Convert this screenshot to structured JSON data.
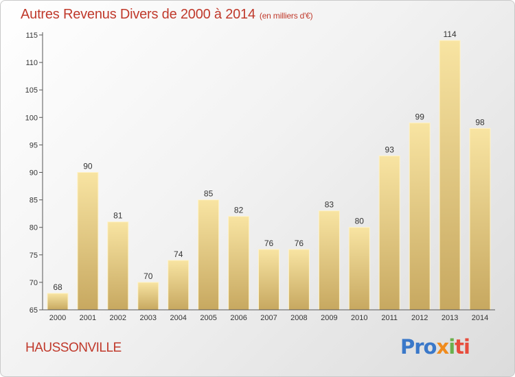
{
  "header": {
    "title": "Autres Revenus Divers de 2000 à 2014",
    "unit": "(en milliers d'€)"
  },
  "footer": {
    "town": "HAUSSONVILLE",
    "logo_parts": [
      "Pro",
      "x",
      "i",
      "ti"
    ]
  },
  "colors": {
    "title": "#c0392b",
    "bar_light": "#f7e2a0",
    "bar_dark": "#c9aa62"
  },
  "chart_data": {
    "type": "bar",
    "title": "Autres Revenus Divers de 2000 à 2014",
    "subtitle": "(en milliers d'€)",
    "xlabel": "",
    "ylabel": "",
    "categories": [
      "2000",
      "2001",
      "2002",
      "2003",
      "2004",
      "2005",
      "2006",
      "2007",
      "2008",
      "2009",
      "2010",
      "2011",
      "2012",
      "2013",
      "2014"
    ],
    "values": [
      68,
      90,
      81,
      70,
      74,
      85,
      82,
      76,
      76,
      83,
      80,
      93,
      99,
      114,
      98
    ],
    "ylim": [
      65,
      115
    ],
    "yticks": [
      65,
      70,
      75,
      80,
      85,
      90,
      95,
      100,
      105,
      110,
      115
    ],
    "grid": false,
    "legend": "none"
  }
}
